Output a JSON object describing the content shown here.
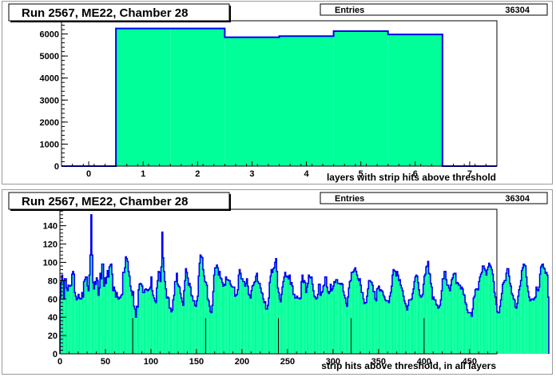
{
  "chart_data": [
    {
      "type": "bar",
      "title": "Run 2567, ME22, Chamber 28",
      "xlabel": "layers with strip hits above threshold",
      "ylabel": "",
      "stats": {
        "label": "Entries",
        "value": "36304"
      },
      "fill_color": "#00ff99",
      "line_color": "#0000ee",
      "xlim": [
        -0.5,
        7.5
      ],
      "ylim": [
        0,
        6600
      ],
      "x_ticks": [
        0,
        1,
        2,
        3,
        4,
        5,
        6,
        7
      ],
      "y_ticks": [
        0,
        1000,
        2000,
        3000,
        4000,
        5000,
        6000
      ],
      "bin_edges": [
        -0.5,
        0.5,
        1.5,
        2.5,
        3.5,
        4.5,
        5.5,
        6.5,
        7.5
      ],
      "values": [
        0,
        6250,
        6250,
        5850,
        5900,
        6130,
        5980,
        0
      ]
    },
    {
      "type": "bar",
      "title": "Run 2567, ME22, Chamber 28",
      "xlabel": "strip hits above threshold, in all layers",
      "ylabel": "",
      "stats": {
        "label": "Entries",
        "value": "36304"
      },
      "fill_color": "#00ff99",
      "line_color": "#0000ee",
      "xlim": [
        0,
        480
      ],
      "ylim": [
        0,
        158
      ],
      "x_ticks": [
        0,
        50,
        100,
        150,
        200,
        250,
        300,
        350,
        400,
        450
      ],
      "y_ticks": [
        0,
        20,
        40,
        60,
        80,
        100,
        120,
        140
      ],
      "bin_width": 1,
      "values": [
        62,
        78,
        86,
        80,
        60,
        82,
        82,
        72,
        69,
        75,
        74,
        74,
        75,
        87,
        90,
        87,
        67,
        63,
        59,
        61,
        65,
        61,
        60,
        60,
        67,
        62,
        79,
        81,
        84,
        84,
        74,
        69,
        86,
        108,
        152,
        108,
        78,
        71,
        79,
        76,
        83,
        80,
        64,
        72,
        88,
        82,
        98,
        98,
        74,
        83,
        77,
        84,
        91,
        84,
        95,
        97,
        98,
        87,
        69,
        73,
        69,
        62,
        67,
        62,
        60,
        61,
        62,
        64,
        65,
        89,
        89,
        94,
        106,
        104,
        101,
        90,
        85,
        74,
        69,
        64,
        68,
        52,
        49,
        40,
        52,
        51,
        70,
        76,
        77,
        76,
        74,
        67,
        67,
        70,
        71,
        70,
        69,
        70,
        71,
        73,
        84,
        69,
        64,
        61,
        58,
        56,
        72,
        80,
        90,
        89,
        79,
        95,
        133,
        105,
        90,
        79,
        71,
        61,
        62,
        61,
        50,
        50,
        46,
        48,
        59,
        64,
        79,
        79,
        88,
        76,
        74,
        73,
        66,
        61,
        57,
        53,
        69,
        80,
        93,
        89,
        83,
        75,
        77,
        73,
        64,
        63,
        58,
        58,
        53,
        52,
        58,
        63,
        85,
        99,
        108,
        106,
        105,
        92,
        85,
        79,
        78,
        75,
        60,
        58,
        52,
        46,
        45,
        53,
        68,
        86,
        94,
        94,
        97,
        94,
        86,
        90,
        83,
        82,
        78,
        74,
        76,
        75,
        84,
        81,
        81,
        80,
        80,
        76,
        74,
        73,
        73,
        73,
        63,
        64,
        65,
        70,
        86,
        92,
        88,
        82,
        82,
        79,
        79,
        74,
        77,
        82,
        74,
        65,
        64,
        61,
        69,
        74,
        75,
        78,
        79,
        85,
        88,
        79,
        77,
        77,
        72,
        67,
        66,
        60,
        56,
        57,
        49,
        49,
        53,
        61,
        78,
        85,
        92,
        89,
        93,
        94,
        100,
        104,
        90,
        72,
        67,
        60,
        57,
        65,
        73,
        79,
        84,
        89,
        85,
        84,
        85,
        82,
        86,
        76,
        78,
        74,
        65,
        65,
        61,
        61,
        63,
        61,
        61,
        60,
        61,
        79,
        86,
        78,
        80,
        78,
        67,
        73,
        77,
        86,
        84,
        83,
        84,
        76,
        69,
        63,
        62,
        60,
        61,
        65,
        76,
        76,
        64,
        67,
        68,
        74,
        75,
        84,
        84,
        73,
        68,
        66,
        68,
        76,
        69,
        71,
        74,
        79,
        78,
        81,
        81,
        77,
        77,
        77,
        76,
        77,
        76,
        68,
        64,
        61,
        55,
        52,
        62,
        72,
        79,
        80,
        89,
        89,
        90,
        92,
        94,
        90,
        86,
        82,
        80,
        82,
        75,
        67,
        67,
        60,
        55,
        56,
        56,
        63,
        71,
        80,
        80,
        79,
        78,
        75,
        68,
        68,
        60,
        58,
        71,
        72,
        74,
        69,
        70,
        69,
        68,
        64,
        62,
        59,
        58,
        58,
        58,
        56,
        63,
        67,
        74,
        86,
        92,
        91,
        90,
        85,
        90,
        86,
        80,
        81,
        75,
        72,
        69,
        63,
        58,
        55,
        52,
        48,
        53,
        59,
        59,
        59,
        60,
        66,
        71,
        79,
        84,
        86,
        85,
        78,
        70,
        64,
        62,
        63,
        65,
        76,
        85,
        87,
        95,
        96,
        101,
        88,
        87,
        77,
        73,
        60,
        62,
        59,
        59,
        54,
        53,
        50,
        51,
        53,
        59,
        69,
        82,
        82,
        90,
        90,
        81,
        75,
        75,
        72,
        69,
        75,
        81,
        83,
        87,
        88,
        88,
        77,
        78,
        77,
        75,
        75,
        71,
        73,
        71,
        65,
        64,
        56,
        54,
        48,
        45,
        45,
        45,
        45,
        41,
        49,
        61,
        63,
        70,
        71,
        71,
        70,
        79,
        84,
        87,
        89,
        96,
        96,
        93,
        91,
        86,
        92,
        95,
        99,
        97,
        95,
        92,
        87,
        79,
        67,
        62,
        54,
        46,
        45,
        45,
        52,
        59,
        66,
        76,
        78,
        80,
        80,
        88,
        93,
        93,
        85,
        77,
        74,
        66,
        64,
        60,
        59,
        51,
        50,
        55,
        63,
        70,
        74,
        80,
        91,
        94,
        98,
        97,
        96,
        84,
        74,
        68,
        62,
        58,
        59,
        60,
        60,
        59,
        61,
        62,
        73,
        70,
        69,
        73,
        87,
        95,
        97,
        98,
        94,
        93,
        88,
        89,
        86,
        62
      ],
      "dips": [
        {
          "x": 80,
          "value": 39
        },
        {
          "x": 160,
          "value": 39
        },
        {
          "x": 240,
          "value": 39
        },
        {
          "x": 320,
          "value": 39
        },
        {
          "x": 400,
          "value": 39
        }
      ]
    }
  ]
}
